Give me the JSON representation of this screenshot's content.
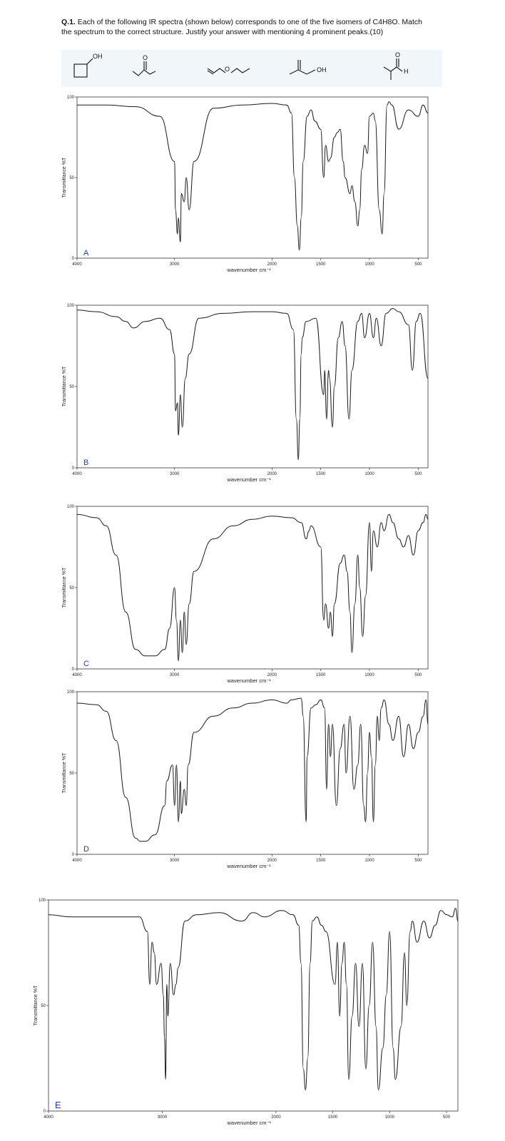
{
  "question": {
    "number": "Q.1.",
    "text": "Each of the following IR spectra (shown below) corresponds to one of the five isomers of C4H8O. Match the spectrum to the correct structure. Justify your answer with mentioning 4 prominent peaks.(10)"
  },
  "structures": [
    {
      "label": "OH"
    },
    {
      "label": "O"
    },
    {
      "label": "O"
    },
    {
      "label": "OH"
    },
    {
      "label": "O",
      "label2": "H"
    }
  ],
  "chart_data": [
    {
      "type": "line",
      "label": "A",
      "ylabel": "Transmittance %T",
      "xlabel": "wavenumber cm⁻¹",
      "xlim": [
        4000,
        400
      ],
      "ylim": [
        0,
        100
      ],
      "xticks": [
        "4000",
        "3000",
        "2000",
        "1500",
        "1000",
        "500"
      ],
      "yticks": [
        "0",
        "50",
        "100"
      ],
      "x": [
        4000,
        3700,
        3400,
        3150,
        3000,
        2990,
        2970,
        2960,
        2940,
        2930,
        2900,
        2880,
        2850,
        2800,
        2600,
        2300,
        2000,
        1850,
        1800,
        1770,
        1740,
        1720,
        1700,
        1680,
        1640,
        1600,
        1560,
        1500,
        1470,
        1450,
        1420,
        1400,
        1360,
        1330,
        1300,
        1270,
        1250,
        1200,
        1180,
        1150,
        1120,
        1100,
        1080,
        1050,
        1020,
        1000,
        960,
        940,
        900,
        870,
        850,
        820,
        800,
        770,
        700,
        600,
        500,
        450,
        400
      ],
      "y": [
        95,
        95,
        94,
        88,
        60,
        30,
        15,
        25,
        10,
        40,
        35,
        50,
        30,
        60,
        93,
        95,
        96,
        95,
        90,
        50,
        20,
        5,
        25,
        60,
        88,
        92,
        85,
        80,
        50,
        70,
        60,
        62,
        75,
        78,
        80,
        60,
        50,
        40,
        45,
        35,
        20,
        30,
        55,
        70,
        65,
        88,
        90,
        85,
        30,
        15,
        40,
        95,
        97,
        95,
        80,
        92,
        88,
        95,
        90
      ],
      "series_color": "#1a1a1a"
    },
    {
      "type": "line",
      "label": "B",
      "ylabel": "Transmittance %T",
      "xlabel": "wavenumber cm⁻¹",
      "xlim": [
        4000,
        400
      ],
      "ylim": [
        0,
        100
      ],
      "xticks": [
        "4000",
        "3000",
        "2000",
        "1500",
        "1000",
        "500"
      ],
      "yticks": [
        "0",
        "50",
        "100"
      ],
      "x": [
        4000,
        3800,
        3600,
        3500,
        3420,
        3300,
        3150,
        3050,
        3000,
        2990,
        2970,
        2960,
        2940,
        2920,
        2890,
        2850,
        2750,
        2500,
        2200,
        2000,
        1850,
        1780,
        1750,
        1730,
        1715,
        1700,
        1690,
        1650,
        1550,
        1470,
        1460,
        1440,
        1420,
        1410,
        1380,
        1360,
        1320,
        1280,
        1250,
        1210,
        1180,
        1120,
        1080,
        1050,
        1000,
        960,
        930,
        880,
        830,
        760,
        700,
        600,
        560,
        520,
        480,
        400
      ],
      "y": [
        97,
        96,
        93,
        90,
        86,
        90,
        92,
        85,
        70,
        35,
        40,
        20,
        45,
        25,
        55,
        70,
        92,
        95,
        96,
        96,
        95,
        85,
        30,
        5,
        30,
        70,
        80,
        90,
        92,
        45,
        60,
        30,
        60,
        55,
        25,
        50,
        80,
        90,
        75,
        30,
        60,
        90,
        95,
        80,
        95,
        80,
        92,
        75,
        95,
        98,
        96,
        88,
        60,
        90,
        95,
        55
      ],
      "series_color": "#1a1a1a"
    },
    {
      "type": "line",
      "label": "C",
      "ylabel": "Transmittance %T",
      "xlabel": "wavenumber cm⁻¹",
      "xlim": [
        4000,
        400
      ],
      "ylim": [
        0,
        100
      ],
      "xticks": [
        "4000",
        "3000",
        "2000",
        "1500",
        "1000",
        "500"
      ],
      "yticks": [
        "0",
        "50",
        "100"
      ],
      "x": [
        4000,
        3800,
        3700,
        3600,
        3500,
        3400,
        3300,
        3200,
        3100,
        3050,
        3000,
        2980,
        2960,
        2940,
        2920,
        2900,
        2880,
        2850,
        2800,
        2600,
        2400,
        2200,
        2000,
        1800,
        1700,
        1650,
        1620,
        1600,
        1500,
        1470,
        1450,
        1420,
        1400,
        1380,
        1360,
        1300,
        1260,
        1230,
        1200,
        1180,
        1150,
        1120,
        1100,
        1070,
        1040,
        1000,
        980,
        960,
        920,
        880,
        850,
        800,
        760,
        700,
        650,
        600,
        550,
        500,
        450,
        420,
        400
      ],
      "y": [
        95,
        93,
        88,
        70,
        35,
        12,
        8,
        8,
        12,
        25,
        50,
        30,
        5,
        30,
        10,
        35,
        15,
        40,
        60,
        80,
        88,
        92,
        94,
        93,
        90,
        80,
        85,
        88,
        75,
        30,
        40,
        25,
        35,
        20,
        40,
        65,
        70,
        60,
        35,
        10,
        40,
        70,
        50,
        20,
        45,
        90,
        60,
        85,
        75,
        90,
        85,
        95,
        90,
        80,
        75,
        82,
        70,
        85,
        90,
        95,
        92
      ],
      "series_color": "#1a1a1a"
    },
    {
      "type": "line",
      "label": "D",
      "ylabel": "Transmittance %T",
      "xlabel": "wavenumber cm⁻¹",
      "xlim": [
        4000,
        400
      ],
      "ylim": [
        0,
        100
      ],
      "xticks": [
        "4000",
        "3000",
        "2000",
        "1500",
        "1000",
        "500"
      ],
      "yticks": [
        "0",
        "50",
        "100"
      ],
      "x": [
        4000,
        3800,
        3700,
        3600,
        3500,
        3400,
        3350,
        3300,
        3200,
        3100,
        3080,
        3020,
        3000,
        2980,
        2960,
        2940,
        2930,
        2900,
        2880,
        2860,
        2800,
        2600,
        2400,
        2200,
        2000,
        1850,
        1800,
        1700,
        1680,
        1650,
        1640,
        1600,
        1550,
        1500,
        1460,
        1440,
        1420,
        1400,
        1380,
        1340,
        1300,
        1260,
        1240,
        1200,
        1160,
        1120,
        1090,
        1060,
        1040,
        1020,
        1000,
        980,
        960,
        940,
        920,
        900,
        880,
        850,
        800,
        760,
        700,
        650,
        600,
        550,
        500,
        450,
        420,
        400
      ],
      "y": [
        93,
        92,
        88,
        70,
        35,
        10,
        8,
        8,
        12,
        30,
        45,
        55,
        30,
        55,
        20,
        45,
        25,
        40,
        30,
        55,
        75,
        85,
        90,
        93,
        95,
        93,
        95,
        96,
        85,
        20,
        60,
        90,
        92,
        95,
        90,
        40,
        80,
        60,
        80,
        30,
        65,
        80,
        50,
        85,
        40,
        55,
        80,
        30,
        20,
        50,
        75,
        60,
        20,
        55,
        85,
        70,
        90,
        95,
        80,
        70,
        85,
        60,
        80,
        65,
        75,
        85,
        95,
        80
      ],
      "series_color": "#1a1a1a"
    },
    {
      "type": "line",
      "label": "E",
      "ylabel": "Transmittance %T",
      "xlabel": "wavenumber cm⁻¹",
      "xlim": [
        4000,
        400
      ],
      "ylim": [
        0,
        100
      ],
      "xticks": [
        "4000",
        "3000",
        "2000",
        "1500",
        "1000",
        "500"
      ],
      "yticks": [
        "0",
        "50",
        "100"
      ],
      "x": [
        4000,
        3800,
        3500,
        3200,
        3130,
        3110,
        3090,
        3070,
        3050,
        3010,
        2990,
        2980,
        2970,
        2960,
        2950,
        2930,
        2900,
        2880,
        2860,
        2800,
        2700,
        2500,
        2300,
        2200,
        2100,
        1950,
        1850,
        1800,
        1780,
        1760,
        1740,
        1720,
        1700,
        1680,
        1640,
        1600,
        1560,
        1480,
        1460,
        1440,
        1420,
        1400,
        1380,
        1360,
        1330,
        1300,
        1270,
        1240,
        1210,
        1180,
        1150,
        1120,
        1100,
        1060,
        1030,
        1000,
        970,
        950,
        900,
        870,
        850,
        820,
        800,
        760,
        700,
        650,
        600,
        550,
        500,
        450,
        420,
        400
      ],
      "y": [
        93,
        92,
        92,
        92,
        85,
        60,
        80,
        75,
        60,
        70,
        55,
        35,
        15,
        60,
        45,
        70,
        55,
        60,
        68,
        90,
        93,
        94,
        90,
        94,
        92,
        95,
        93,
        88,
        70,
        20,
        10,
        25,
        70,
        90,
        92,
        88,
        85,
        60,
        80,
        45,
        70,
        80,
        60,
        15,
        45,
        70,
        40,
        70,
        20,
        50,
        80,
        40,
        10,
        30,
        55,
        85,
        30,
        15,
        40,
        75,
        50,
        85,
        90,
        80,
        90,
        82,
        88,
        95,
        93,
        92,
        96,
        90
      ],
      "series_color": "#1a1a1a"
    }
  ]
}
